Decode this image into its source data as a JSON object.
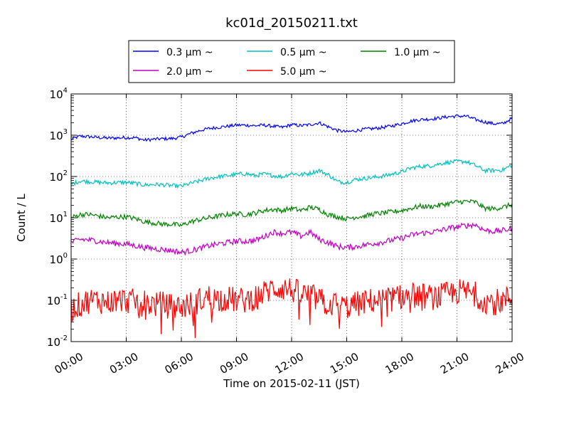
{
  "chart_data": {
    "type": "line",
    "title": "kc01d_20150211.txt",
    "xlabel": "Time on 2015-02-11 (JST)",
    "ylabel": "Count / L",
    "yscale": "log",
    "ylim": [
      0.01,
      10000
    ],
    "xlim": [
      "00:00",
      "24:00"
    ],
    "x_ticks": [
      "00:00",
      "03:00",
      "06:00",
      "09:00",
      "12:00",
      "15:00",
      "18:00",
      "21:00",
      "24:00"
    ],
    "y_ticks": [
      {
        "base": "10",
        "exp": "-2"
      },
      {
        "base": "10",
        "exp": "-1"
      },
      {
        "base": "10",
        "exp": "0"
      },
      {
        "base": "10",
        "exp": "1"
      },
      {
        "base": "10",
        "exp": "2"
      },
      {
        "base": "10",
        "exp": "3"
      },
      {
        "base": "10",
        "exp": "4"
      }
    ],
    "grid": true,
    "legend_position": "top-center",
    "legend_columns": 3,
    "x_hours": [
      0,
      0.5,
      1.0,
      1.5,
      2.0,
      2.5,
      3.0,
      3.5,
      4.0,
      4.5,
      5.0,
      5.5,
      6.0,
      6.5,
      7.0,
      7.5,
      8.0,
      8.5,
      9.0,
      9.5,
      10.0,
      10.5,
      11.0,
      11.5,
      12.0,
      12.5,
      13.0,
      13.5,
      14.0,
      14.5,
      15.0,
      15.5,
      16.0,
      16.5,
      17.0,
      17.5,
      18.0,
      18.5,
      19.0,
      19.5,
      20.0,
      20.5,
      21.0,
      21.5,
      22.0,
      22.5,
      23.0,
      23.5,
      24.0
    ],
    "series": [
      {
        "name": "0.3 μm ~",
        "color": "#0000ff",
        "noise": 0.04,
        "values": [
          800,
          950,
          920,
          880,
          850,
          860,
          880,
          870,
          760,
          800,
          820,
          830,
          900,
          1100,
          1300,
          1450,
          1550,
          1650,
          1750,
          1750,
          1700,
          1750,
          1650,
          1550,
          1800,
          1700,
          1800,
          2000,
          1600,
          1300,
          1200,
          1300,
          1400,
          1450,
          1550,
          1700,
          1900,
          2200,
          2400,
          2450,
          2600,
          2800,
          2900,
          2900,
          2400,
          2100,
          1900,
          1900,
          2600
        ]
      },
      {
        "name": "0.5 μm ~",
        "color": "#00bfbf",
        "noise": 0.05,
        "values": [
          65,
          78,
          75,
          72,
          70,
          71,
          72,
          68,
          62,
          64,
          63,
          60,
          58,
          68,
          78,
          90,
          98,
          105,
          112,
          118,
          105,
          115,
          105,
          98,
          120,
          110,
          120,
          140,
          110,
          75,
          72,
          85,
          90,
          96,
          103,
          115,
          130,
          160,
          175,
          180,
          200,
          220,
          230,
          230,
          185,
          140,
          140,
          145,
          190
        ]
      },
      {
        "name": "1.0 μm ~",
        "color": "#008000",
        "noise": 0.06,
        "values": [
          10,
          12,
          12,
          11,
          10,
          10.5,
          10.5,
          9.5,
          8,
          7.5,
          7,
          7,
          6.5,
          8,
          9,
          10,
          11,
          12,
          12.5,
          12,
          13,
          15,
          16,
          15,
          17,
          15,
          18,
          16,
          12,
          10.5,
          9.5,
          10.5,
          11,
          12.5,
          13,
          14,
          15,
          17,
          19,
          18.5,
          20,
          22,
          24,
          25,
          24,
          17,
          16.5,
          18,
          21
        ]
      },
      {
        "name": "2.0 μm ~",
        "color": "#bf00bf",
        "noise": 0.07,
        "values": [
          2.5,
          3,
          2.9,
          2.7,
          2.5,
          2.4,
          2.3,
          2.1,
          1.9,
          1.8,
          1.7,
          1.6,
          1.45,
          1.6,
          1.8,
          2.1,
          2.3,
          2.5,
          2.7,
          2.7,
          2.8,
          3.5,
          4.5,
          4.2,
          4.5,
          3.6,
          4.5,
          3.0,
          2.5,
          2.0,
          1.9,
          2.0,
          2.2,
          2.4,
          2.6,
          2.9,
          3.2,
          3.8,
          4.2,
          4.4,
          4.8,
          5.5,
          6.0,
          6.5,
          6.8,
          5.0,
          4.7,
          4.9,
          5.5
        ]
      },
      {
        "name": "5.0 μm ~",
        "color": "#ff0000",
        "noise": 0.32,
        "values": [
          0.06,
          0.08,
          0.1,
          0.1,
          0.09,
          0.1,
          0.1,
          0.09,
          0.09,
          0.08,
          0.08,
          0.07,
          0.07,
          0.08,
          0.1,
          0.12,
          0.11,
          0.11,
          0.1,
          0.1,
          0.12,
          0.15,
          0.2,
          0.2,
          0.18,
          0.14,
          0.13,
          0.1,
          0.08,
          0.08,
          0.07,
          0.08,
          0.09,
          0.1,
          0.1,
          0.11,
          0.12,
          0.13,
          0.13,
          0.12,
          0.12,
          0.14,
          0.16,
          0.16,
          0.14,
          0.1,
          0.09,
          0.1,
          0.12
        ]
      }
    ]
  }
}
